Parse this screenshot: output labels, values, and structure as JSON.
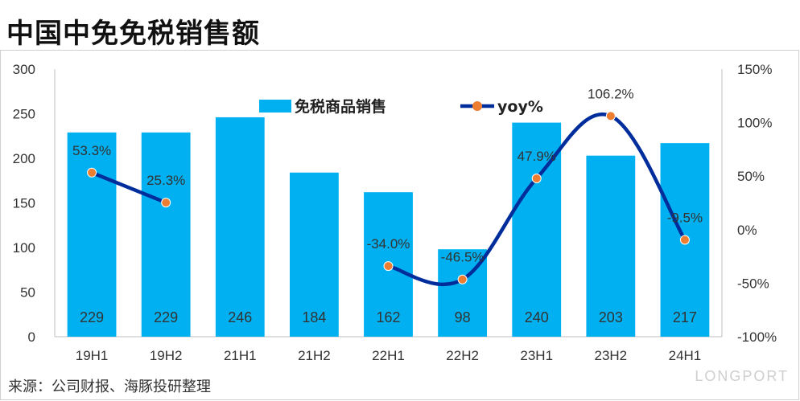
{
  "title": "中国中免免税销售额",
  "source": "来源：公司财报、海豚投研整理",
  "watermark": "LONGPORT",
  "colors": {
    "bar": "#00b0f0",
    "line": "#002d9c",
    "marker": "#ed7d31"
  },
  "chart_data": {
    "type": "bar",
    "title": "中国中免免税销售额",
    "categories": [
      "19H1",
      "19H2",
      "21H1",
      "21H2",
      "22H1",
      "22H2",
      "23H1",
      "23H2",
      "24H1"
    ],
    "series": [
      {
        "name": "免税商品销售",
        "type": "bar",
        "axis": "left",
        "values": [
          229,
          229,
          246,
          184,
          162,
          98,
          240,
          203,
          217
        ],
        "labels": [
          "229",
          "229",
          "246",
          "184",
          "162",
          "98",
          "240",
          "203",
          "217"
        ]
      },
      {
        "name": "yoy%",
        "type": "line",
        "axis": "right",
        "values": [
          53.3,
          25.3,
          null,
          null,
          -34.0,
          -46.5,
          47.9,
          106.2,
          -9.5
        ],
        "labels": [
          "53.3%",
          "25.3%",
          "",
          "",
          "-34.0%",
          "-46.5%",
          "47.9%",
          "106.2%",
          "-9.5%"
        ]
      }
    ],
    "ylim": [
      0,
      300
    ],
    "yticks": [
      "0",
      "50",
      "100",
      "150",
      "200",
      "250",
      "300"
    ],
    "y2lim": [
      -100,
      150
    ],
    "y2ticks": [
      "-100%",
      "-50%",
      "0%",
      "50%",
      "100%",
      "150%"
    ],
    "legend_position": "top-center",
    "grid": false
  }
}
